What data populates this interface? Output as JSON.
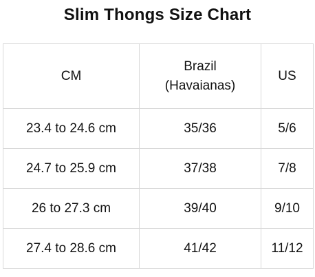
{
  "title": "Slim Thongs Size Chart",
  "table": {
    "headers": {
      "cm": "CM",
      "brazil_line1": "Brazil",
      "brazil_line2": "(Havaianas)",
      "us": "US"
    },
    "rows": [
      {
        "cm": "23.4 to 24.6 cm",
        "brazil": "35/36",
        "us": "5/6"
      },
      {
        "cm": "24.7 to 25.9 cm",
        "brazil": "37/38",
        "us": "7/8"
      },
      {
        "cm": "26 to 27.3 cm",
        "brazil": "39/40",
        "us": "9/10"
      },
      {
        "cm": "27.4 to 28.6 cm",
        "brazil": "41/42",
        "us": "11/12"
      }
    ]
  }
}
